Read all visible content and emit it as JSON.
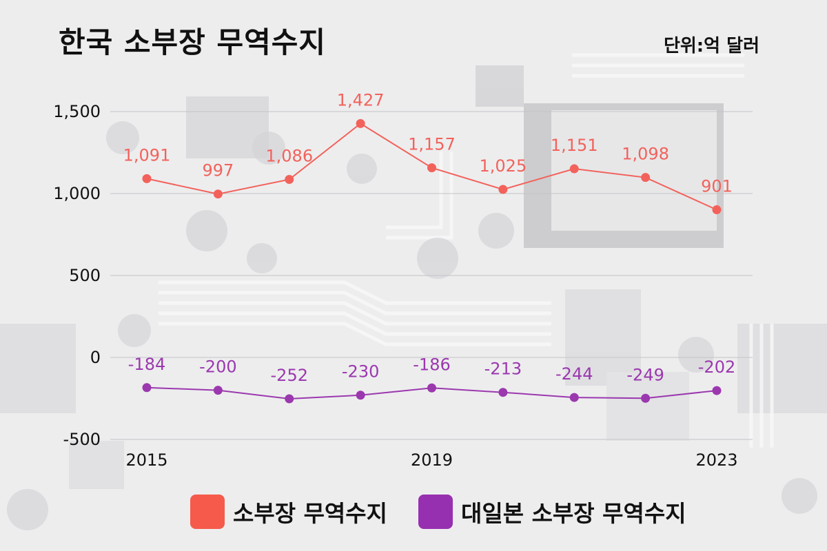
{
  "title": "한국 소부장 무역수지",
  "unit": "단위:억 달러",
  "chart_data": {
    "type": "line",
    "x": [
      2015,
      2016,
      2017,
      2018,
      2019,
      2020,
      2021,
      2022,
      2023
    ],
    "x_tick_labels": [
      "2015",
      "2019",
      "2023"
    ],
    "x_ticks": [
      2015,
      2019,
      2023
    ],
    "y_ticks": [
      -500,
      0,
      500,
      1000,
      1500
    ],
    "y_tick_labels": [
      "-500",
      "0",
      "500",
      "1,000",
      "1,500"
    ],
    "ylim": [
      -500,
      1500
    ],
    "grid": true,
    "legend_position": "bottom",
    "series": [
      {
        "name": "소부장 무역수지",
        "color": "#f2625b",
        "values": [
          1091,
          997,
          1086,
          1427,
          1157,
          1025,
          1151,
          1098,
          901
        ],
        "labels": [
          "1,091",
          "997",
          "1,086",
          "1,427",
          "1,157",
          "1,025",
          "1,151",
          "1,098",
          "901"
        ]
      },
      {
        "name": "대일본 소부장 무역수지",
        "color": "#9b38ae",
        "values": [
          -184,
          -200,
          -252,
          -230,
          -186,
          -213,
          -244,
          -249,
          -202
        ],
        "labels": [
          "-184",
          "-200",
          "-252",
          "-230",
          "-186",
          "-213",
          "-244",
          "-249",
          "-202"
        ]
      }
    ]
  },
  "legend": [
    {
      "label": "소부장 무역수지",
      "color": "#f65a4b"
    },
    {
      "label": "대일본 소부장 무역수지",
      "color": "#9730b0"
    }
  ]
}
